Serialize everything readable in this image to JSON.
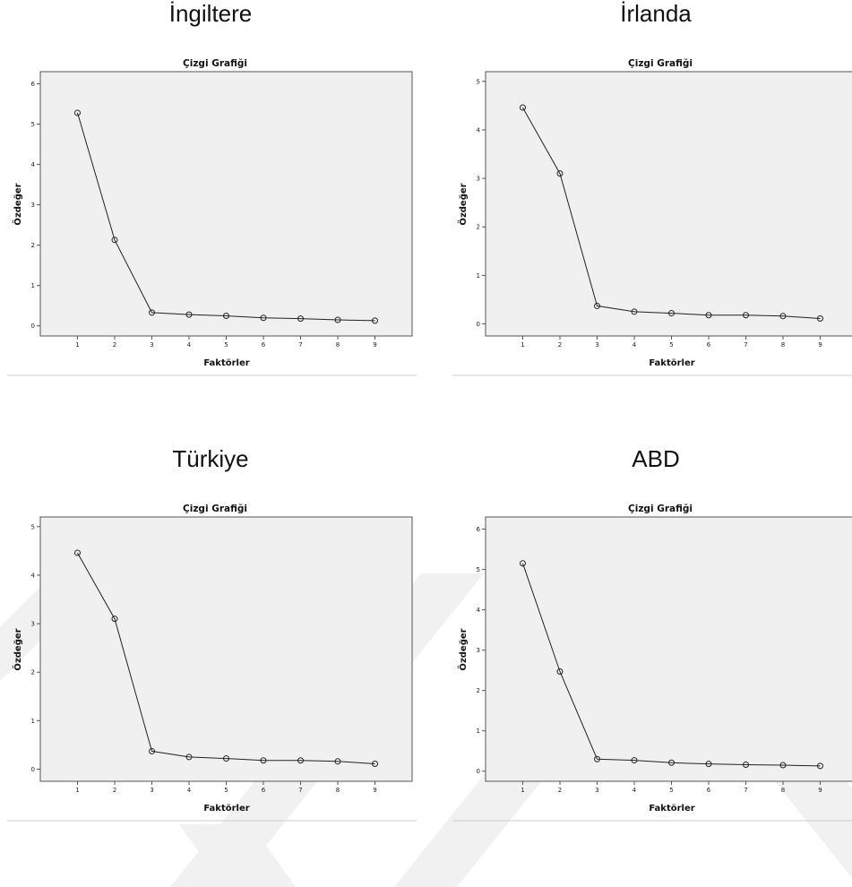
{
  "chart_data": [
    {
      "type": "line",
      "country": "İngiltere",
      "title": "Çizgi Grafiği",
      "xlabel": "Faktörler",
      "ylabel": "Özdeğer",
      "x": [
        1,
        2,
        3,
        4,
        5,
        6,
        7,
        8,
        9
      ],
      "series": [
        {
          "values": [
            5.28,
            2.13,
            0.33,
            0.28,
            0.25,
            0.2,
            0.18,
            0.15,
            0.13
          ]
        }
      ],
      "ylim": [
        -0.25,
        6.3
      ],
      "yticks": [
        0,
        1,
        2,
        3,
        4,
        5,
        6
      ],
      "xlim": [
        0,
        10
      ],
      "grid": false
    },
    {
      "type": "line",
      "country": "İrlanda",
      "title": "Çizgi Grafiği",
      "xlabel": "Faktörler",
      "ylabel": "Özdeğer",
      "x": [
        1,
        2,
        3,
        4,
        5,
        6,
        7,
        8,
        9
      ],
      "series": [
        {
          "values": [
            4.46,
            3.1,
            0.37,
            0.25,
            0.22,
            0.18,
            0.18,
            0.16,
            0.11
          ]
        }
      ],
      "ylim": [
        -0.25,
        5.2
      ],
      "yticks": [
        0,
        1,
        2,
        3,
        4,
        5
      ],
      "xlim": [
        0,
        10
      ],
      "grid": false
    },
    {
      "type": "line",
      "country": "Türkiye",
      "title": "Çizgi Grafiği",
      "xlabel": "Faktörler",
      "ylabel": "Özdeğer",
      "x": [
        1,
        2,
        3,
        4,
        5,
        6,
        7,
        8,
        9
      ],
      "series": [
        {
          "values": [
            4.46,
            3.1,
            0.37,
            0.25,
            0.22,
            0.18,
            0.18,
            0.16,
            0.11
          ]
        }
      ],
      "ylim": [
        -0.25,
        5.2
      ],
      "yticks": [
        0,
        1,
        2,
        3,
        4,
        5
      ],
      "xlim": [
        0,
        10
      ],
      "grid": false
    },
    {
      "type": "line",
      "country": "ABD",
      "title": "Çizgi Grafiği",
      "xlabel": "Faktörler",
      "ylabel": "Özdeğer",
      "x": [
        1,
        2,
        3,
        4,
        5,
        6,
        7,
        8,
        9
      ],
      "series": [
        {
          "values": [
            5.15,
            2.47,
            0.3,
            0.27,
            0.21,
            0.18,
            0.16,
            0.15,
            0.13
          ]
        }
      ],
      "ylim": [
        -0.25,
        6.3
      ],
      "yticks": [
        0,
        1,
        2,
        3,
        4,
        5,
        6
      ],
      "xlim": [
        0,
        10
      ],
      "grid": false
    }
  ],
  "colors": {
    "plot_bg": "#f0f0f0",
    "line": "#222222",
    "frame": "#555555",
    "watermark": "#f1f1f1"
  }
}
